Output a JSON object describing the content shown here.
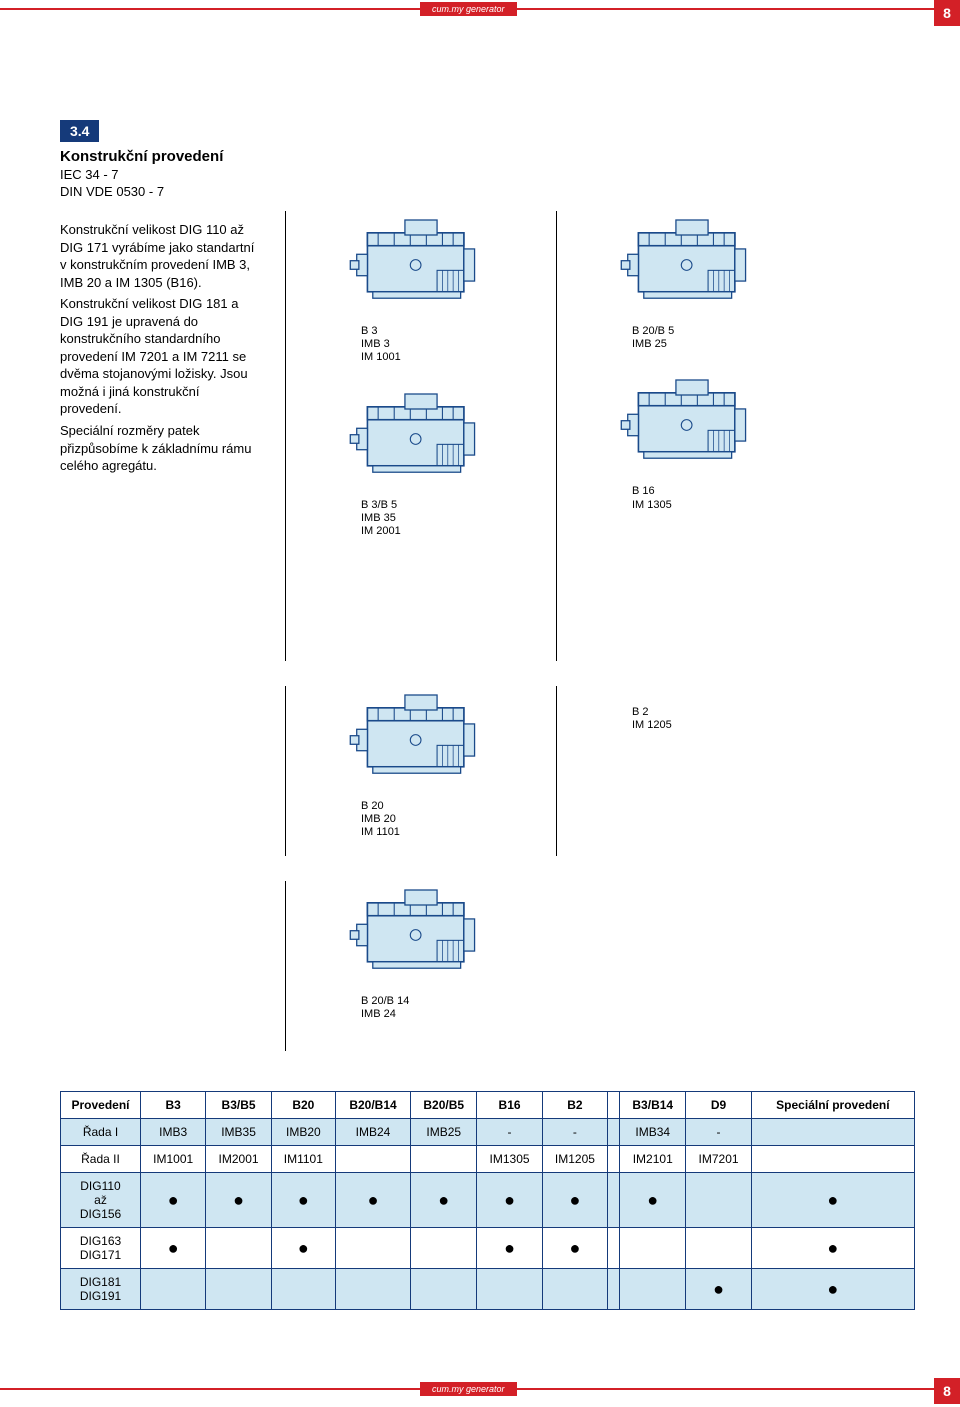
{
  "page_number": "8",
  "brand_text": "cum.my generator",
  "section_number": "3.4",
  "heading": "Konstrukční provedení",
  "standard1": "IEC 34 - 7",
  "standard2": "DIN VDE 0530 - 7",
  "paragraph1": "Konstrukční velikost DIG 110 až DIG 171 vyrábíme jako standartní v konstrukčním provedení IMB 3, IMB 20 a IM 1305 (B16).",
  "paragraph2": "Konstrukční velikost DIG 181 a DIG 191 je upravená do konstrukčního standardního provedení IM 7201 a IM 7211 se dvěma stojanovými ložisky. Jsou možná i jiná konstrukční provedení.",
  "paragraph3": "Speciální rozměry patek přizpůsobíme k základnímu rámu celého agregátu.",
  "motor_color_fill": "#cfe6f2",
  "motor_color_stroke": "#1a4a8a",
  "motors": {
    "m1": {
      "l1": "B 3",
      "l2": "IMB 3",
      "l3": "IM 1001"
    },
    "m2": {
      "l1": "B 20/B 5",
      "l2": "IMB 25",
      "l3": ""
    },
    "m3": {
      "l1": "B 3/B 5",
      "l2": "IMB 35",
      "l3": "IM 2001"
    },
    "m4": {
      "l1": "B 16",
      "l2": "IM 1305",
      "l3": ""
    },
    "m5": {
      "l1": "B 20",
      "l2": "IMB 20",
      "l3": "IM 1101"
    },
    "m6": {
      "l1": "B 2",
      "l2": "IM 1205",
      "l3": ""
    },
    "m7": {
      "l1": "B 20/B 14",
      "l2": "IMB 24",
      "l3": ""
    }
  },
  "table": {
    "header": [
      "Provedení",
      "B3",
      "B3/B5",
      "B20",
      "B20/B14",
      "B20/B5",
      "B16",
      "B2",
      "",
      "B3/B14",
      "D9",
      "Speciální provedení"
    ],
    "rows": [
      [
        "Řada I",
        "IMB3",
        "IMB35",
        "IMB20",
        "IMB24",
        "IMB25",
        "-",
        "-",
        "",
        "IMB34",
        "-",
        ""
      ],
      [
        "Řada II",
        "IM1001",
        "IM2001",
        "IM1101",
        "",
        "",
        "IM1305",
        "IM1205",
        "",
        "IM2101",
        "IM7201",
        ""
      ],
      [
        "DIG110 až DIG156",
        "●",
        "●",
        "●",
        "●",
        "●",
        "●",
        "●",
        "",
        "●",
        "",
        "●"
      ],
      [
        "DIG163 DIG171",
        "●",
        "",
        "●",
        "",
        "",
        "●",
        "●",
        "",
        "",
        "",
        "●"
      ],
      [
        "DIG181 DIG191",
        "",
        "",
        "",
        "",
        "",
        "",
        "",
        "",
        "",
        "●",
        "●"
      ]
    ],
    "even_bg": "#cfe6f2"
  }
}
